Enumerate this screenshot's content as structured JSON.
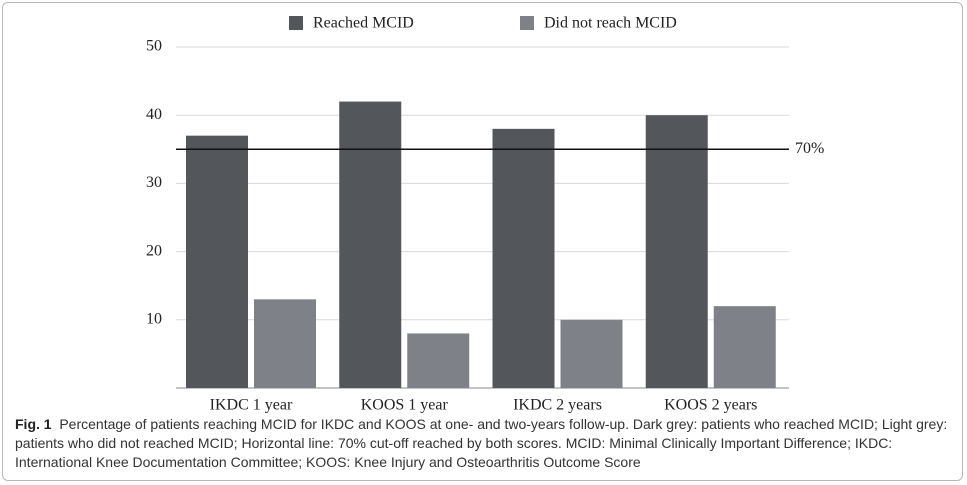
{
  "chart_data": {
    "type": "bar",
    "categories": [
      "IKDC 1 year",
      "KOOS 1 year",
      "IKDC 2 years",
      "KOOS 2 years"
    ],
    "series": [
      {
        "name": "Reached MCID",
        "color": "#53565b",
        "values": [
          37,
          42,
          38,
          40
        ]
      },
      {
        "name": "Did not reach MCID",
        "color": "#7e8188",
        "values": [
          13,
          8,
          10,
          12
        ]
      }
    ],
    "ylim": [
      0,
      50
    ],
    "yticks": [
      10,
      20,
      30,
      40,
      50
    ],
    "grid": true,
    "reference_line": {
      "value": 35,
      "label": "70%"
    },
    "legend": "top"
  },
  "caption": {
    "label": "Fig. 1",
    "text": "Percentage of patients reaching MCID for IKDC and KOOS at one- and two-years follow-up. Dark grey: patients who reached MCID; Light grey: patients who did not reached MCID; Horizontal line: 70% cut-off reached by both scores. MCID: Minimal Clinically Important Difference; IKDC: International Knee Documentation Committee; KOOS: Knee Injury and Osteoarthritis Outcome Score"
  }
}
